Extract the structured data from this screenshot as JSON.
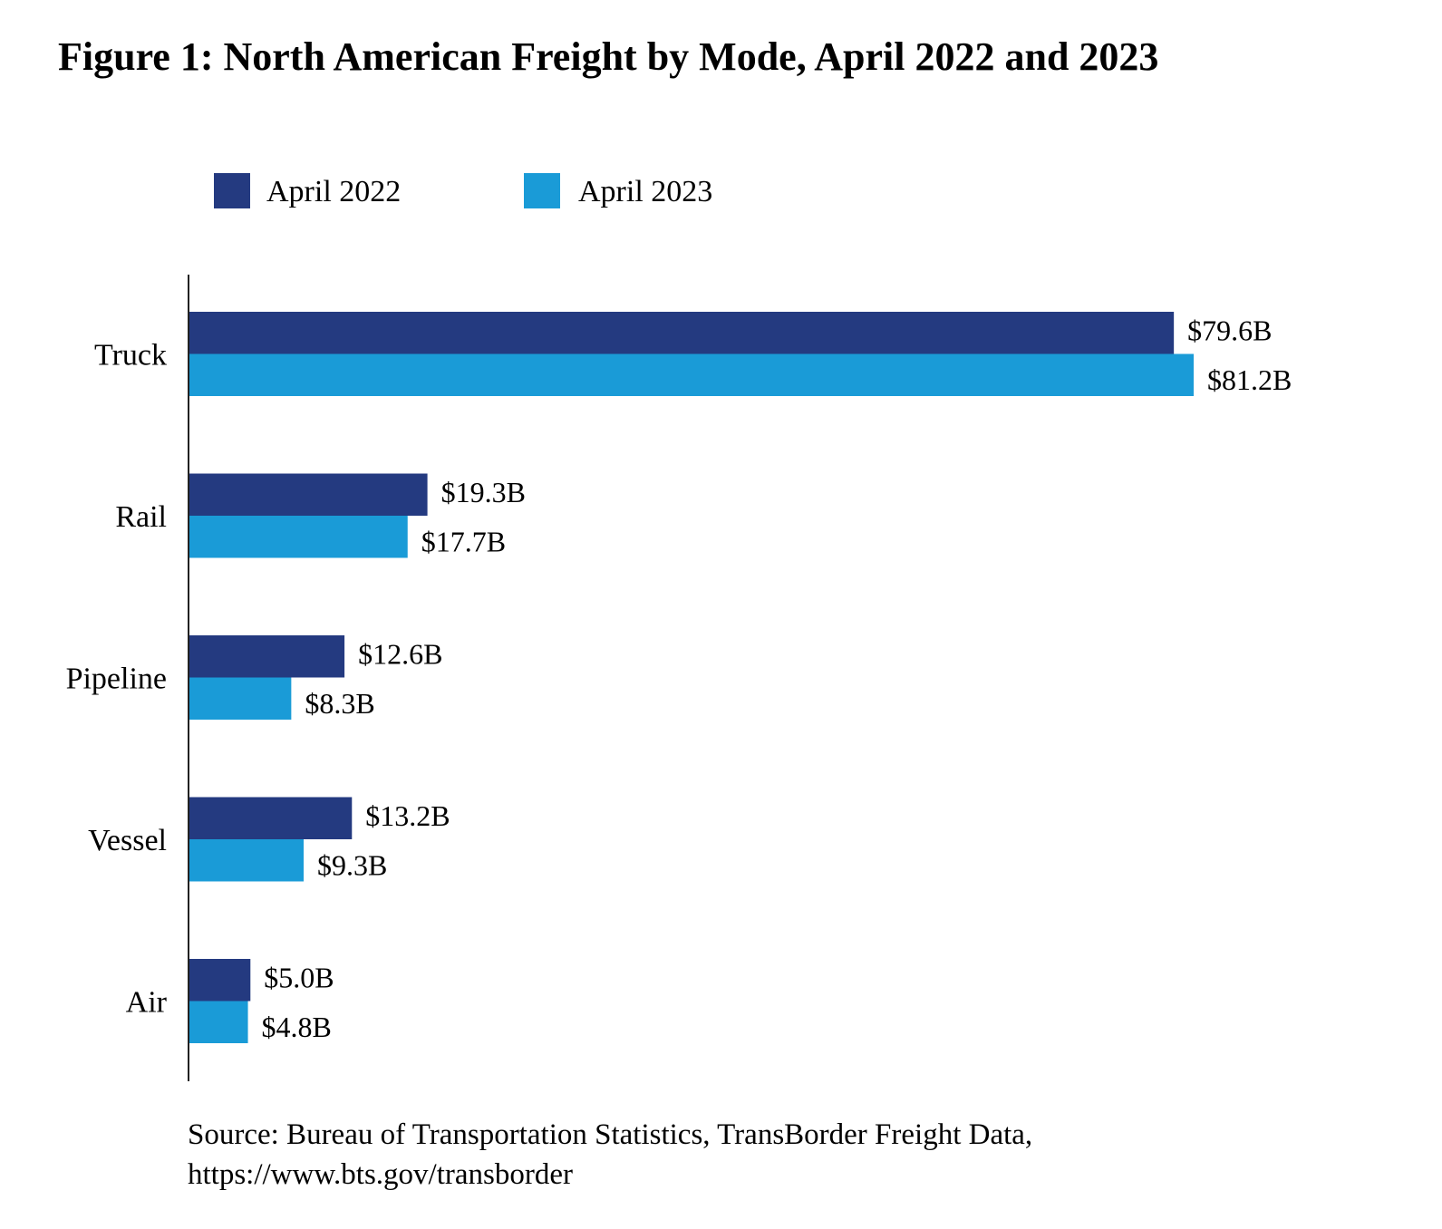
{
  "chart_data": {
    "type": "bar",
    "orientation": "horizontal",
    "title": "Figure 1: North American Freight by Mode, April 2022 and 2023",
    "categories": [
      "Truck",
      "Rail",
      "Pipeline",
      "Vessel",
      "Air"
    ],
    "series": [
      {
        "name": "April 2022",
        "color": "#243a80",
        "values": [
          79.6,
          19.3,
          12.6,
          13.2,
          5.0
        ],
        "labels": [
          "$79.6B",
          "$19.3B",
          "$12.6B",
          "$13.2B",
          "$5.0B"
        ]
      },
      {
        "name": "April 2023",
        "color": "#1a9bd7",
        "values": [
          81.2,
          17.7,
          8.3,
          9.3,
          4.8
        ],
        "labels": [
          "$81.2B",
          "$17.7B",
          "$8.3B",
          "$9.3B",
          "$4.8B"
        ]
      }
    ],
    "unit": "billion USD",
    "xlim": [
      0,
      81.2
    ],
    "grid": false,
    "legend_position": "top",
    "source": [
      "Source: Bureau of Transportation Statistics, TransBorder Freight Data,",
      "https://www.bts.gov/transborder"
    ]
  }
}
